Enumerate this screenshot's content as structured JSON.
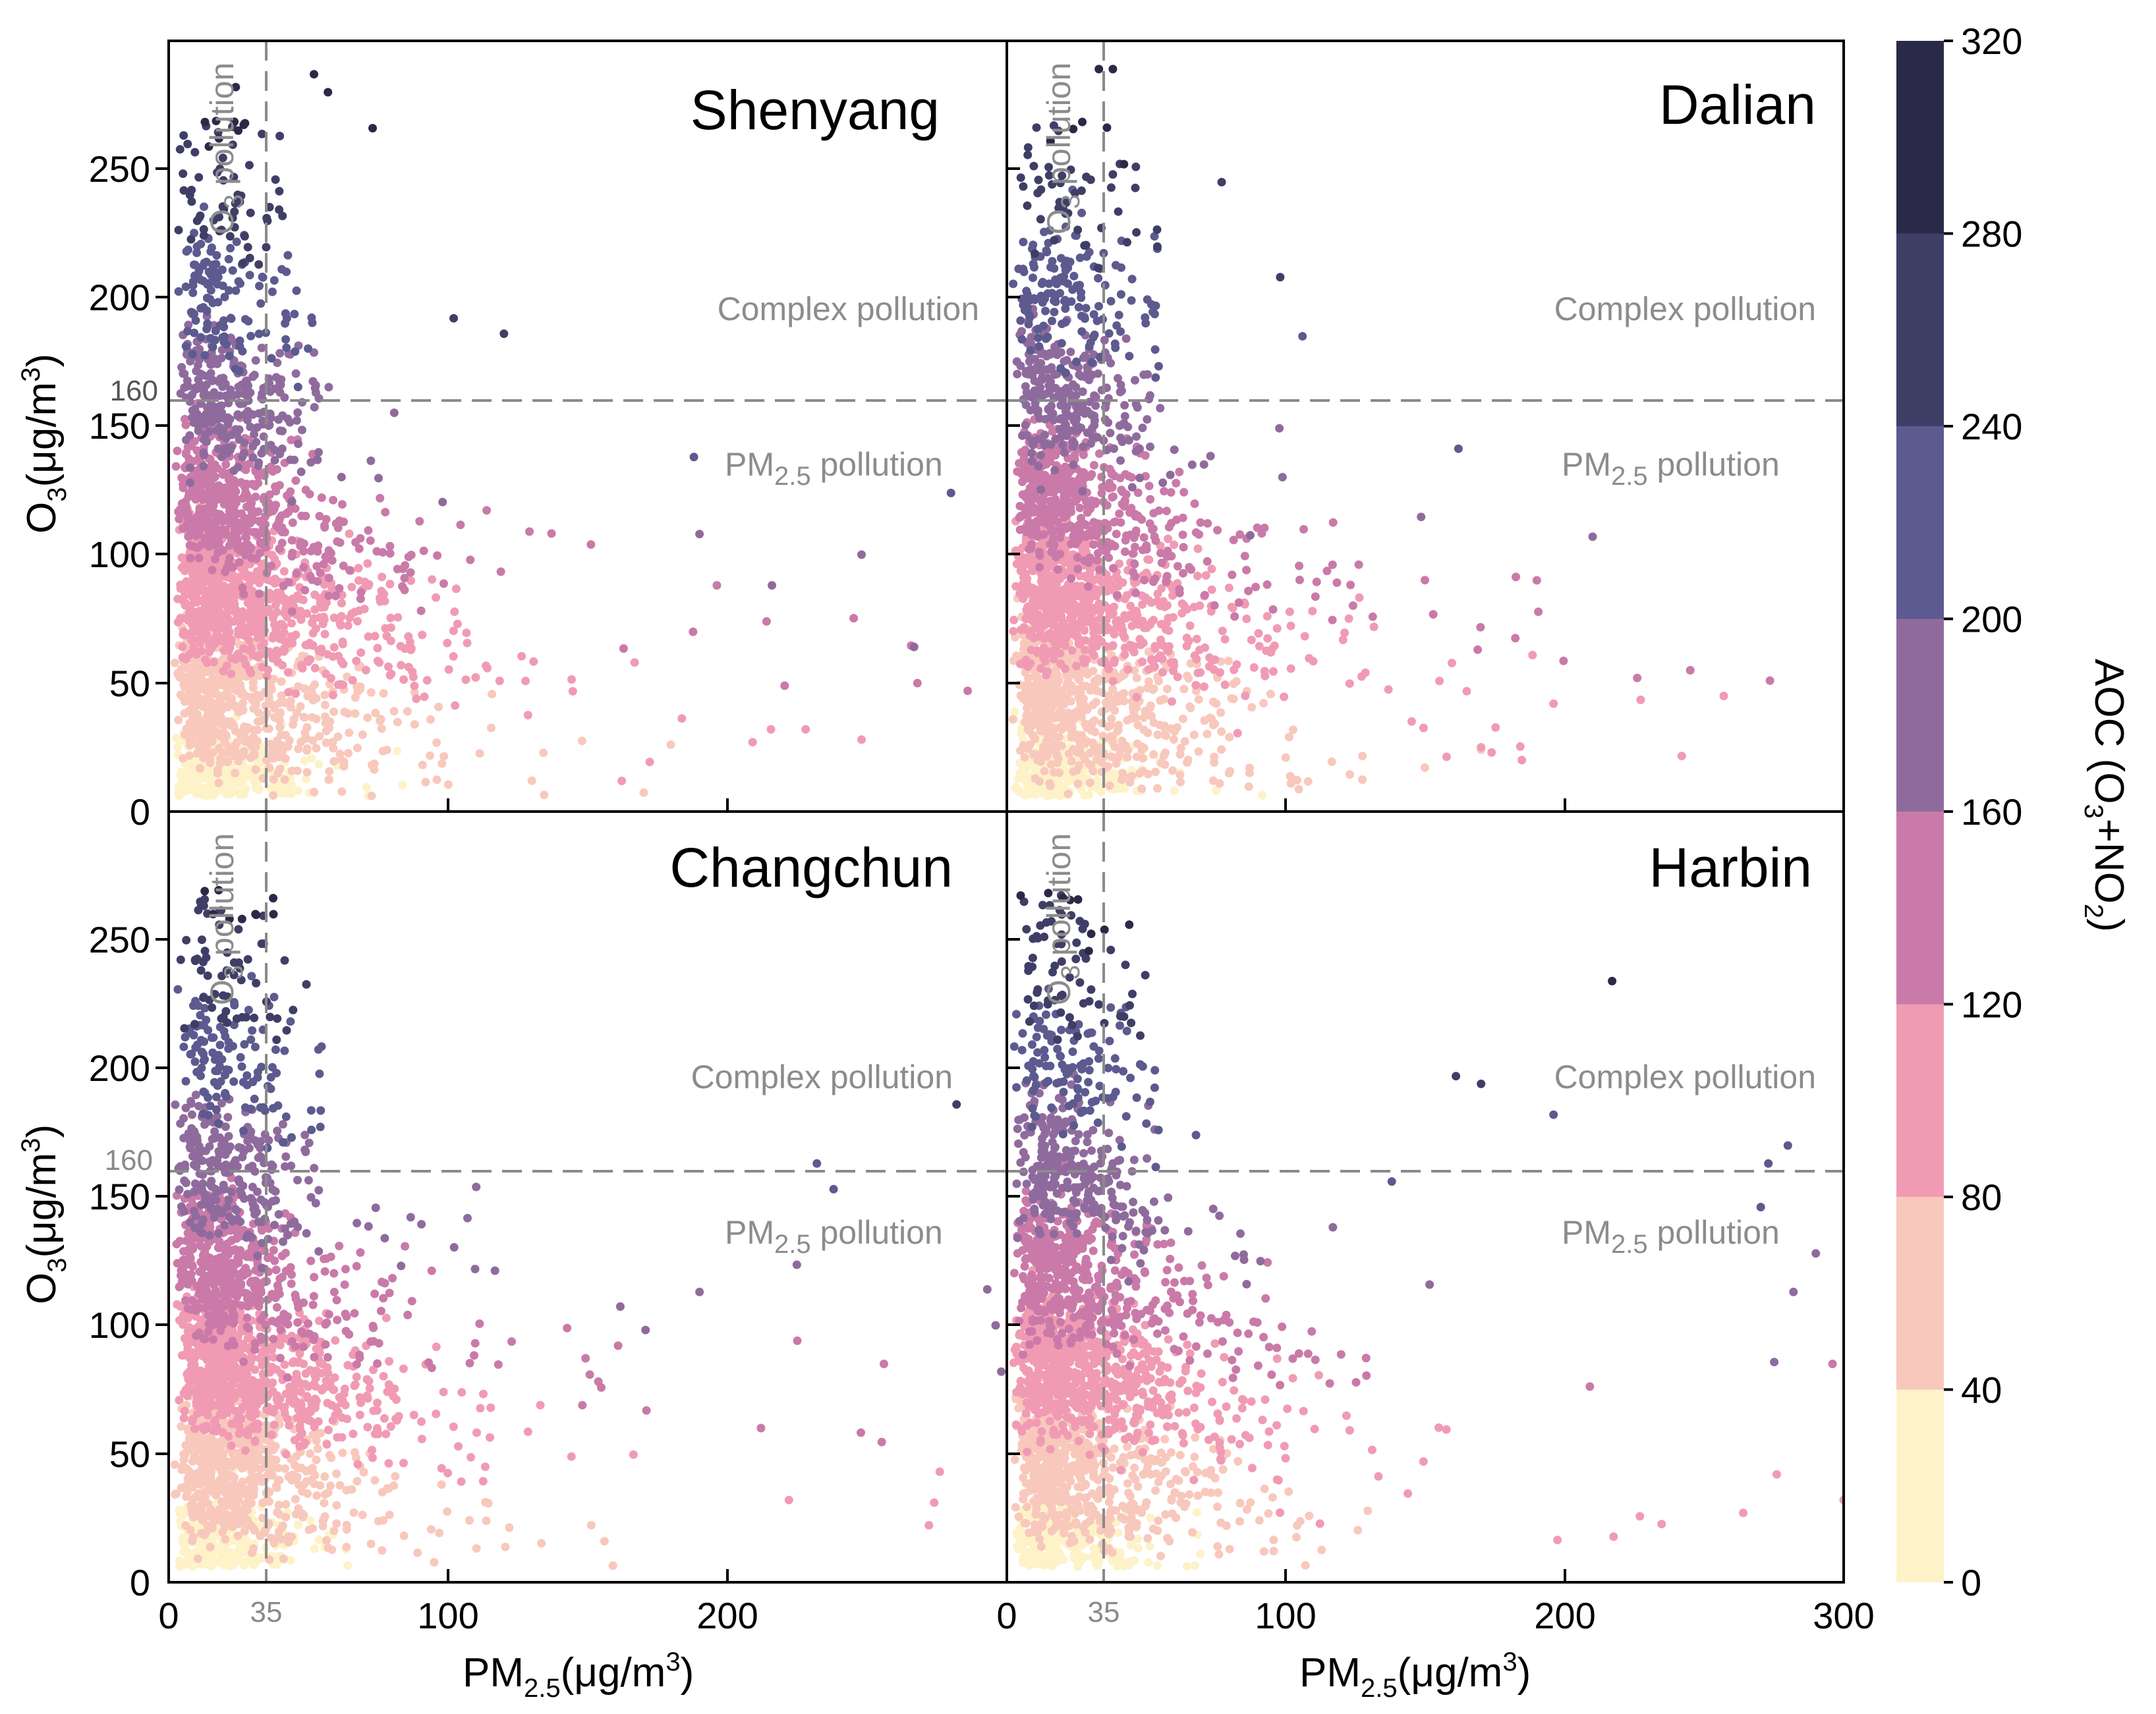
{
  "chart_data": {
    "type": "scatter",
    "x_label": {
      "main": "PM",
      "sub": "2.5",
      "rest": "(μg/m",
      "sup": "3",
      "end": ")"
    },
    "y_label": {
      "main": "O",
      "sub": "3",
      "rest": "(μg/m",
      "sup": "3",
      "end": ")"
    },
    "xlim": [
      0,
      300
    ],
    "ylim": [
      0,
      300
    ],
    "x_ticks": [
      "0",
      "100",
      "200",
      "300"
    ],
    "x_ticks_left": [
      "0",
      "100",
      "200"
    ],
    "y_ticks": [
      "0",
      "50",
      "100",
      "150",
      "200",
      "250"
    ],
    "pm25_threshold": 35,
    "pm25_threshold_label": "35",
    "o3_threshold": 160,
    "o3_threshold_label": "160",
    "annotations": {
      "complex": "Complex pollution",
      "pm_pollution": {
        "main": "PM",
        "sub": "2.5",
        "rest": " pollution"
      },
      "o3_pollution": {
        "main": "O",
        "sub": "3",
        "rest": " pollution"
      }
    },
    "colorbar": {
      "label": {
        "main": "AOC (O",
        "sub1": "3",
        "mid": "+NO",
        "sub2": "2",
        "end": ")"
      },
      "ticks": [
        "0",
        "40",
        "80",
        "120",
        "160",
        "200",
        "240",
        "280",
        "320"
      ],
      "bins": [
        {
          "min": 0,
          "max": 40,
          "color": "#fdf2c8"
        },
        {
          "min": 40,
          "max": 80,
          "color": "#f8c8bc"
        },
        {
          "min": 80,
          "max": 120,
          "color": "#f09bb3"
        },
        {
          "min": 120,
          "max": 160,
          "color": "#c97aa8"
        },
        {
          "min": 160,
          "max": 200,
          "color": "#8f6b9d"
        },
        {
          "min": 200,
          "max": 240,
          "color": "#5c5a8e"
        },
        {
          "min": 240,
          "max": 280,
          "color": "#3f3e66"
        },
        {
          "min": 280,
          "max": 320,
          "color": "#2a2a48"
        }
      ]
    },
    "panels": [
      {
        "city": "Shenyang",
        "outliers": [
          {
            "x": 24,
            "y": 282,
            "aoc": 300
          },
          {
            "x": 18,
            "y": 262,
            "aoc": 290
          },
          {
            "x": 52,
            "y": 287,
            "aoc": 310
          },
          {
            "x": 57,
            "y": 280,
            "aoc": 305
          },
          {
            "x": 73,
            "y": 266,
            "aoc": 300
          },
          {
            "x": 120,
            "y": 186,
            "aoc": 245
          },
          {
            "x": 102,
            "y": 192,
            "aoc": 245
          },
          {
            "x": 188,
            "y": 138,
            "aoc": 215
          },
          {
            "x": 280,
            "y": 124,
            "aoc": 200
          },
          {
            "x": 248,
            "y": 100,
            "aoc": 175
          },
          {
            "x": 190,
            "y": 108,
            "aoc": 170
          },
          {
            "x": 286,
            "y": 47,
            "aoc": 130
          },
          {
            "x": 268,
            "y": 50,
            "aoc": 120
          },
          {
            "x": 248,
            "y": 28,
            "aoc": 100
          },
          {
            "x": 228,
            "y": 32,
            "aoc": 105
          },
          {
            "x": 209,
            "y": 27,
            "aoc": 100
          },
          {
            "x": 214,
            "y": 74,
            "aoc": 130
          },
          {
            "x": 6,
            "y": 15,
            "aoc": 20
          }
        ]
      },
      {
        "city": "Dalian",
        "outliers": [
          {
            "x": 33,
            "y": 289,
            "aoc": 310
          },
          {
            "x": 38,
            "y": 289,
            "aoc": 310
          },
          {
            "x": 42,
            "y": 252,
            "aoc": 280
          },
          {
            "x": 38,
            "y": 248,
            "aoc": 275
          },
          {
            "x": 77,
            "y": 245,
            "aoc": 270
          },
          {
            "x": 98,
            "y": 208,
            "aoc": 245
          },
          {
            "x": 106,
            "y": 185,
            "aoc": 235
          },
          {
            "x": 210,
            "y": 107,
            "aoc": 170
          },
          {
            "x": 190,
            "y": 90,
            "aoc": 150
          },
          {
            "x": 245,
            "y": 55,
            "aoc": 120
          },
          {
            "x": 257,
            "y": 45,
            "aoc": 115
          },
          {
            "x": 226,
            "y": 52,
            "aoc": 120
          },
          {
            "x": 196,
            "y": 42,
            "aoc": 110
          },
          {
            "x": 170,
            "y": 25,
            "aoc": 95
          },
          {
            "x": 100,
            "y": 21,
            "aoc": 60
          },
          {
            "x": 87,
            "y": 17,
            "aoc": 55
          },
          {
            "x": 54,
            "y": 9,
            "aoc": 45
          }
        ]
      },
      {
        "city": "Changchun",
        "outliers": [
          {
            "x": 19,
            "y": 236,
            "aoc": 275
          },
          {
            "x": 35,
            "y": 226,
            "aoc": 270
          },
          {
            "x": 282,
            "y": 186,
            "aoc": 240
          },
          {
            "x": 232,
            "y": 163,
            "aoc": 215
          },
          {
            "x": 238,
            "y": 153,
            "aoc": 210
          },
          {
            "x": 293,
            "y": 114,
            "aoc": 180
          },
          {
            "x": 296,
            "y": 100,
            "aoc": 170
          },
          {
            "x": 298,
            "y": 82,
            "aoc": 160
          },
          {
            "x": 190,
            "y": 113,
            "aoc": 175
          },
          {
            "x": 225,
            "y": 94,
            "aoc": 150
          },
          {
            "x": 256,
            "y": 85,
            "aoc": 140
          },
          {
            "x": 276,
            "y": 43,
            "aoc": 110
          },
          {
            "x": 274,
            "y": 31,
            "aoc": 100
          },
          {
            "x": 222,
            "y": 32,
            "aoc": 100
          },
          {
            "x": 212,
            "y": 60,
            "aoc": 120
          },
          {
            "x": 156,
            "y": 16,
            "aoc": 70
          },
          {
            "x": 4,
            "y": 27,
            "aoc": 25
          }
        ]
      },
      {
        "city": "Harbin",
        "outliers": [
          {
            "x": 35,
            "y": 254,
            "aoc": 285
          },
          {
            "x": 217,
            "y": 234,
            "aoc": 290
          },
          {
            "x": 45,
            "y": 229,
            "aoc": 275
          },
          {
            "x": 170,
            "y": 194,
            "aoc": 250
          },
          {
            "x": 161,
            "y": 197,
            "aoc": 250
          },
          {
            "x": 280,
            "y": 170,
            "aoc": 230
          },
          {
            "x": 273,
            "y": 163,
            "aoc": 220
          },
          {
            "x": 196,
            "y": 182,
            "aoc": 235
          },
          {
            "x": 290,
            "y": 128,
            "aoc": 190
          },
          {
            "x": 282,
            "y": 113,
            "aoc": 175
          },
          {
            "x": 296,
            "y": 85,
            "aoc": 150
          },
          {
            "x": 300,
            "y": 32,
            "aoc": 110
          },
          {
            "x": 276,
            "y": 42,
            "aoc": 110
          },
          {
            "x": 264,
            "y": 27,
            "aoc": 100
          },
          {
            "x": 138,
            "y": 156,
            "aoc": 210
          },
          {
            "x": 4,
            "y": 18,
            "aoc": 20
          }
        ]
      }
    ]
  }
}
